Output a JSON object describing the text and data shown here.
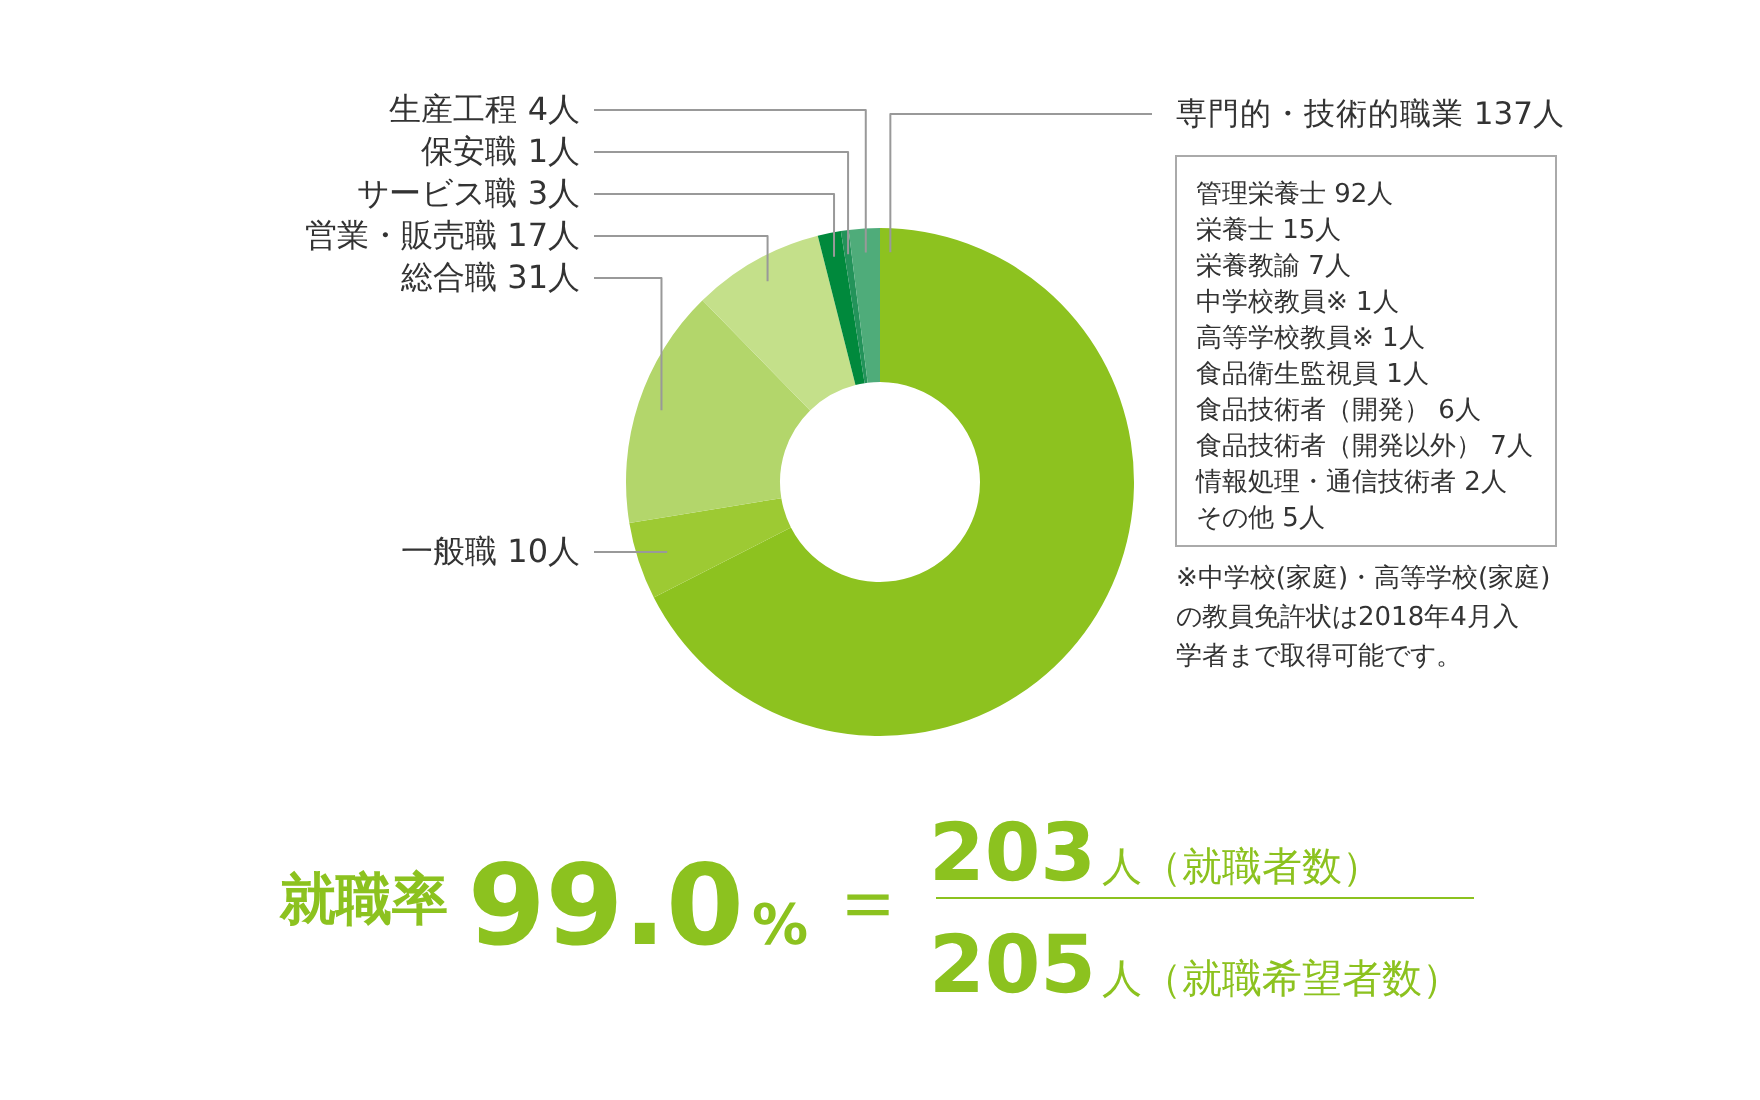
{
  "chart_data": {
    "type": "donut",
    "categories": [
      "専門的・技術的職業",
      "一般職",
      "総合職",
      "営業・販売職",
      "サービス職",
      "保安職",
      "生産工程"
    ],
    "values": [
      137,
      10,
      31,
      17,
      3,
      1,
      4
    ],
    "value_labels": [
      "137人",
      "10人",
      "31人",
      "17人",
      "3人",
      "1人",
      "4人"
    ],
    "colors": [
      "#8dc21f",
      "#9dca33",
      "#b3d66b",
      "#c4e08a",
      "#00893c",
      "#23935a",
      "#4fac7a"
    ],
    "annotations": [
      "管理栄養士 92人",
      "栄養士 15人",
      "栄養教諭 7人",
      "中学校教員※ 1人",
      "高等学校教員※ 1人",
      "食品衛生監視員 1人",
      "食品技術者（開発） 6人",
      "食品技術者（開発以外） 7人",
      "情報処理・通信技術者 2人",
      "その他 5人",
      "※中学校(家庭)・高等学校(家庭)の教員免許状は2018年4月入学者まで取得可能です。",
      "就職率",
      "99.0",
      "%",
      "＝",
      "203",
      "人（就職者数）",
      "205",
      "人（就職希望者数）"
    ]
  }
}
